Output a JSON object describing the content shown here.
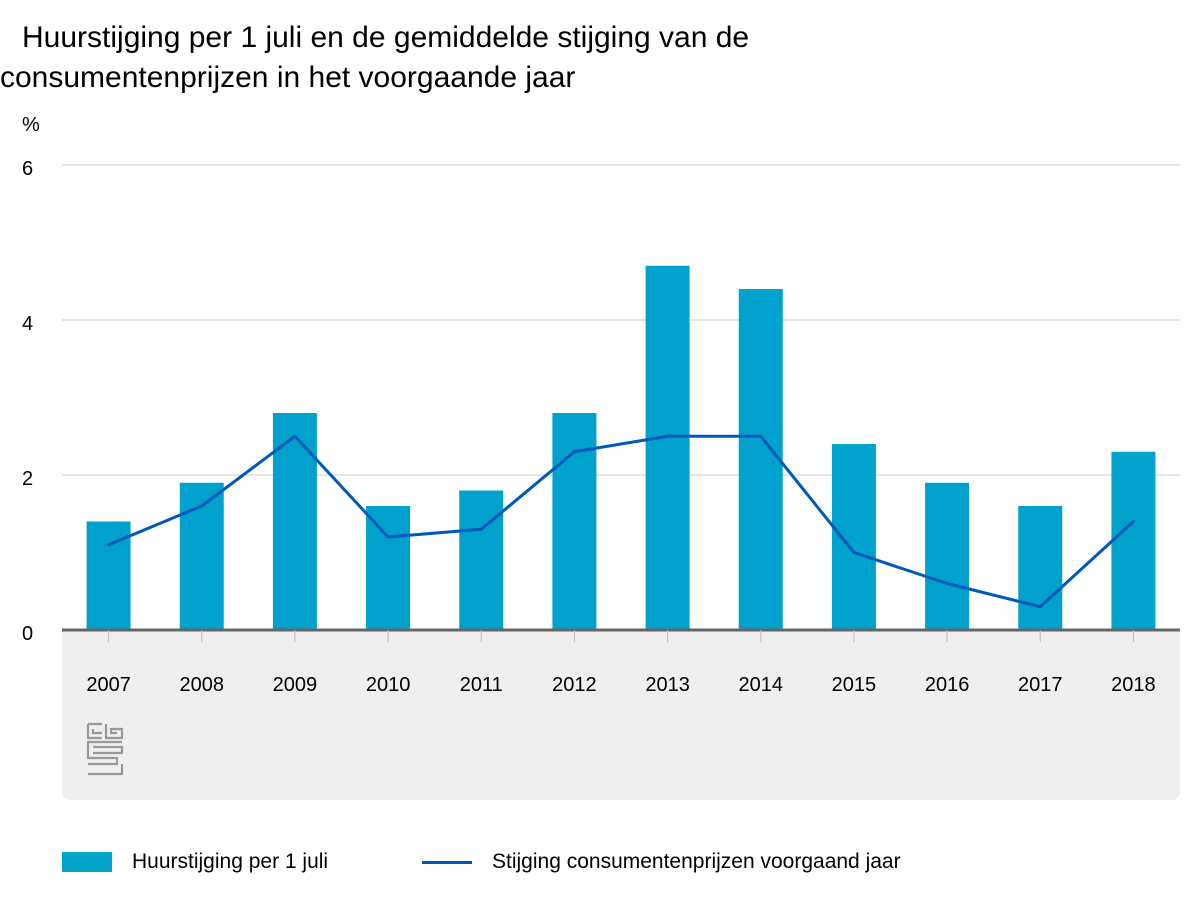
{
  "chart_data": {
    "type": "bar",
    "title_line1": "Huurstijging per 1 juli en de gemiddelde stijging van de",
    "title_line2": "consumentenprijzen in het voorgaande jaar",
    "ylabel": "%",
    "xlabel": "",
    "ylim": [
      0,
      6
    ],
    "yticks": [
      0,
      2,
      4,
      6
    ],
    "grid": true,
    "legend_position": "bottom",
    "categories": [
      "2007",
      "2008",
      "2009",
      "2010",
      "2011",
      "2012",
      "2013",
      "2014",
      "2015",
      "2016",
      "2017",
      "2018"
    ],
    "series": [
      {
        "name": "Huurstijging per 1 juli",
        "kind": "bar",
        "color": "#00a1cd",
        "values": [
          1.4,
          1.9,
          2.8,
          1.6,
          1.8,
          2.8,
          4.7,
          4.4,
          2.4,
          1.9,
          1.6,
          2.3
        ]
      },
      {
        "name": "Stijging consumentenprijzen voorgaand jaar",
        "kind": "line",
        "color": "#0058b8",
        "values": [
          1.1,
          1.6,
          2.5,
          1.2,
          1.3,
          2.3,
          2.5,
          2.5,
          1.0,
          0.6,
          0.3,
          1.4
        ]
      }
    ]
  },
  "logo_text": "cbs"
}
